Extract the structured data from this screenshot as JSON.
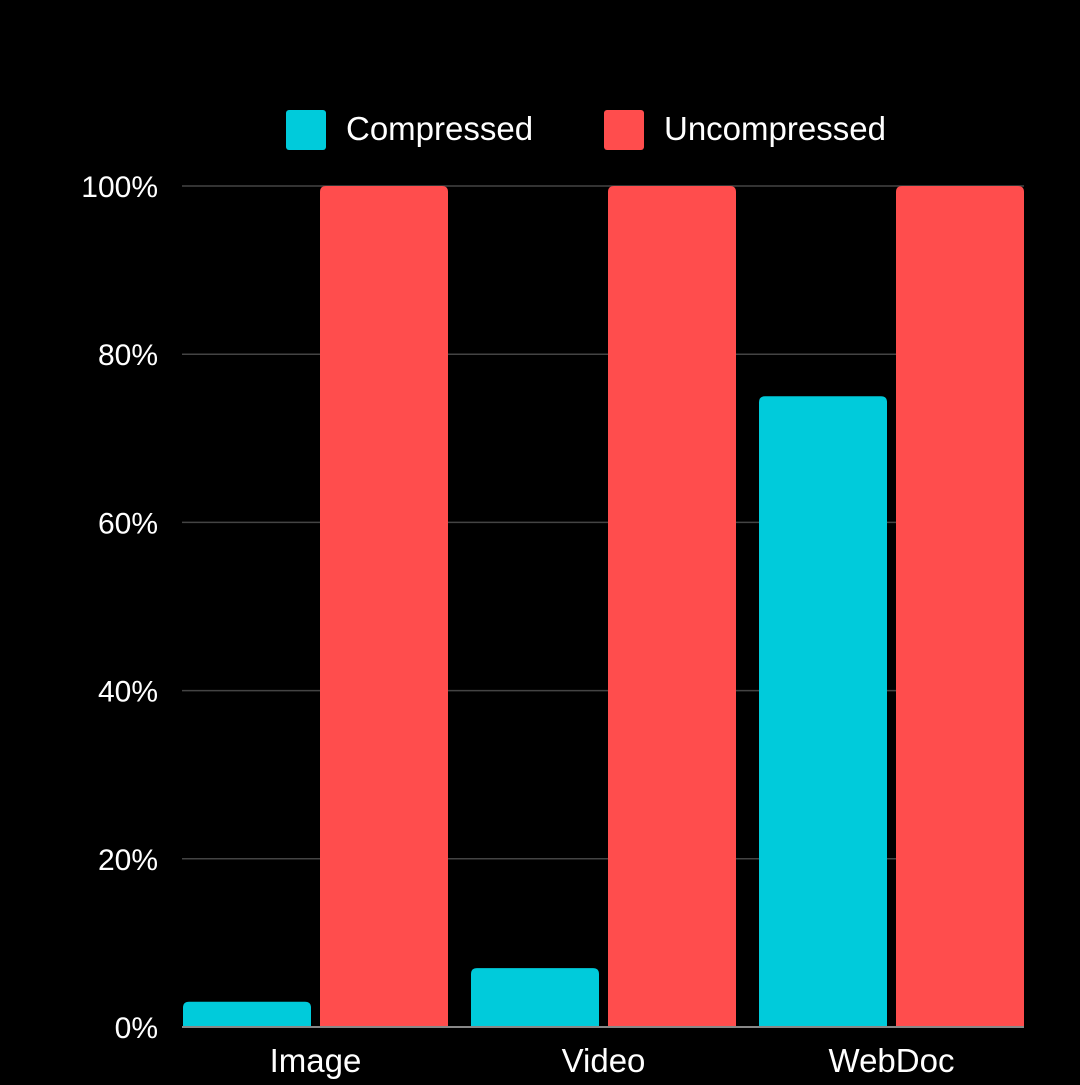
{
  "chart_data": {
    "type": "bar",
    "title": "",
    "xlabel": "",
    "ylabel": "",
    "categories": [
      "Image",
      "Video",
      "WebDoc"
    ],
    "series": [
      {
        "name": "Compressed",
        "values": [
          3,
          7,
          75
        ],
        "color": "#00CBDB"
      },
      {
        "name": "Uncompressed",
        "values": [
          100,
          100,
          100
        ],
        "color": "#FF4D4D"
      }
    ],
    "ylim": [
      0,
      100
    ],
    "yticks": [
      0,
      20,
      40,
      60,
      80,
      100
    ],
    "ytick_labels": [
      "0%",
      "20%",
      "40%",
      "60%",
      "80%",
      "100%"
    ],
    "grid": true,
    "legend": "top-center"
  },
  "colors": {
    "background": "#000000",
    "gridline": "#444444",
    "axis": "#888888",
    "text": "#ffffff"
  }
}
